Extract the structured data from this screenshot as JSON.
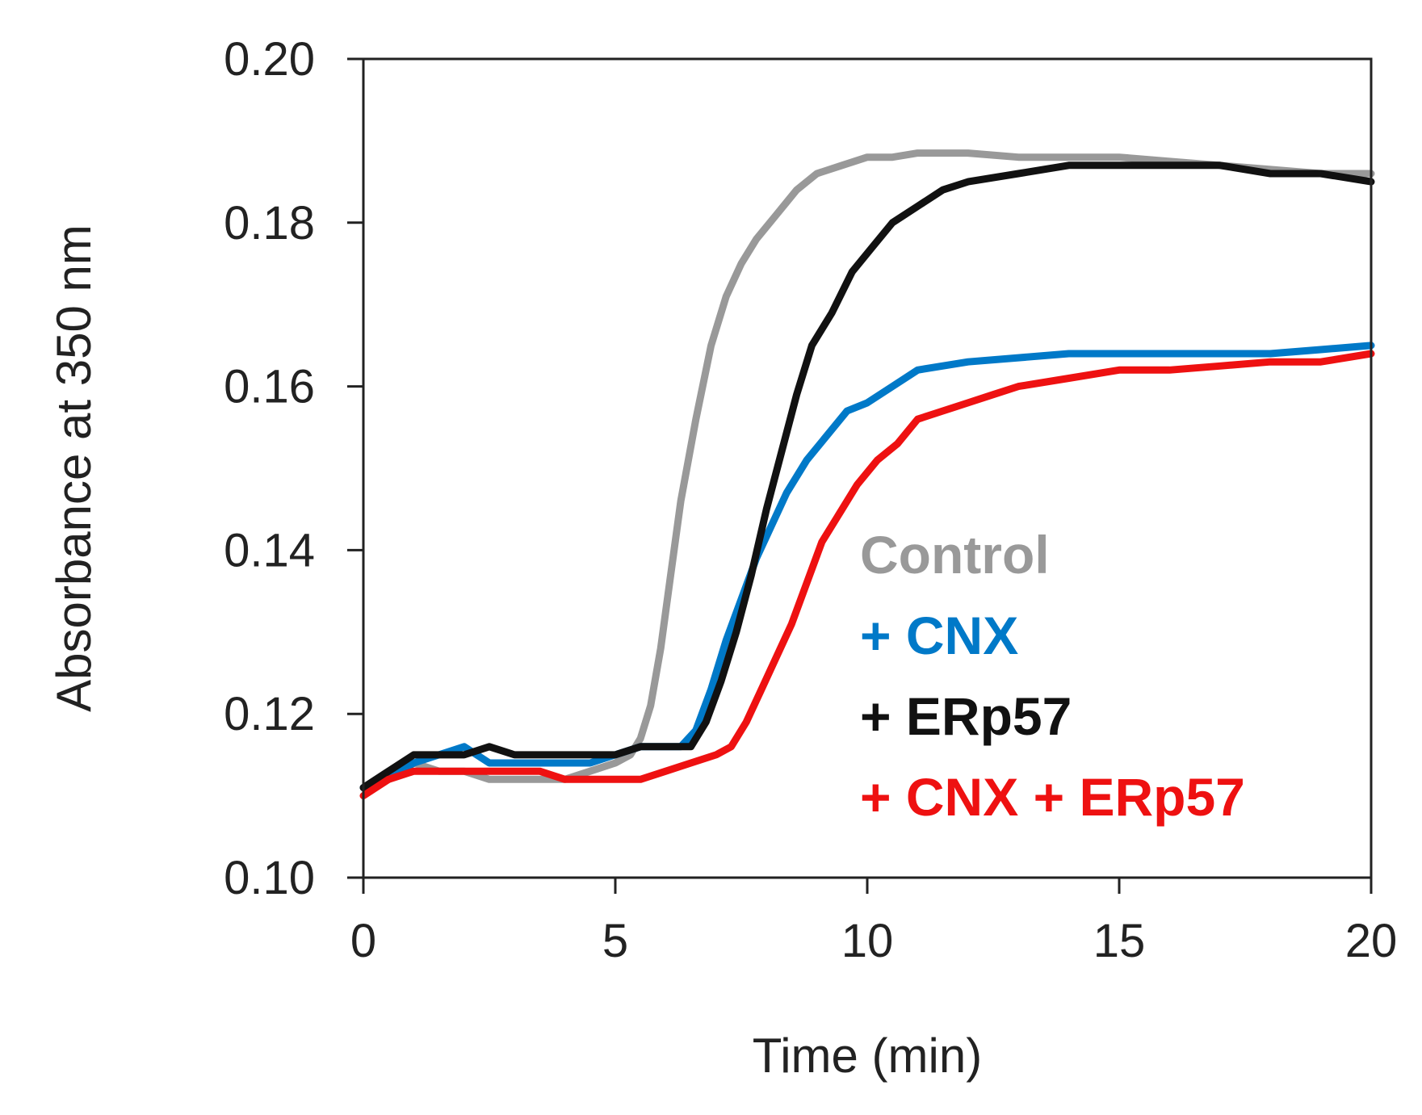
{
  "chart_data": {
    "type": "line",
    "title": "",
    "xlabel": "Time (min)",
    "ylabel": "Absorbance at 350 nm",
    "xlim": [
      0,
      20
    ],
    "ylim": [
      0.1,
      0.2
    ],
    "xticks": [
      0,
      5,
      10,
      15,
      20
    ],
    "xtick_labels": [
      "0",
      "5",
      "10",
      "15",
      "20"
    ],
    "yticks": [
      0.1,
      0.12,
      0.14,
      0.16,
      0.18,
      0.2
    ],
    "ytick_labels": [
      "0.10",
      "0.12",
      "0.14",
      "0.16",
      "0.18",
      "0.20"
    ],
    "grid": false,
    "legend_position": "bottom-right inside plot",
    "series": [
      {
        "name": "Control",
        "color": "#999999",
        "points": [
          [
            0,
            0.111
          ],
          [
            0.5,
            0.113
          ],
          [
            1,
            0.114
          ],
          [
            1.5,
            0.113
          ],
          [
            2,
            0.113
          ],
          [
            2.5,
            0.112
          ],
          [
            3,
            0.112
          ],
          [
            3.5,
            0.112
          ],
          [
            4,
            0.112
          ],
          [
            4.5,
            0.113
          ],
          [
            5,
            0.114
          ],
          [
            5.3,
            0.115
          ],
          [
            5.5,
            0.117
          ],
          [
            5.7,
            0.121
          ],
          [
            5.9,
            0.128
          ],
          [
            6.1,
            0.137
          ],
          [
            6.3,
            0.146
          ],
          [
            6.6,
            0.156
          ],
          [
            6.9,
            0.165
          ],
          [
            7.2,
            0.171
          ],
          [
            7.5,
            0.175
          ],
          [
            7.8,
            0.178
          ],
          [
            8.2,
            0.181
          ],
          [
            8.6,
            0.184
          ],
          [
            9,
            0.186
          ],
          [
            9.5,
            0.187
          ],
          [
            10,
            0.188
          ],
          [
            10.5,
            0.188
          ],
          [
            11,
            0.1885
          ],
          [
            12,
            0.1885
          ],
          [
            13,
            0.188
          ],
          [
            14,
            0.188
          ],
          [
            15,
            0.188
          ],
          [
            16,
            0.1875
          ],
          [
            17,
            0.187
          ],
          [
            18,
            0.1865
          ],
          [
            19,
            0.186
          ],
          [
            20,
            0.186
          ]
        ]
      },
      {
        "name": "+ CNX",
        "color": "#0079c8",
        "points": [
          [
            0,
            0.111
          ],
          [
            0.5,
            0.112
          ],
          [
            1,
            0.114
          ],
          [
            1.5,
            0.115
          ],
          [
            2,
            0.116
          ],
          [
            2.5,
            0.114
          ],
          [
            3,
            0.114
          ],
          [
            3.5,
            0.114
          ],
          [
            4,
            0.114
          ],
          [
            4.5,
            0.114
          ],
          [
            5,
            0.115
          ],
          [
            5.5,
            0.116
          ],
          [
            6,
            0.116
          ],
          [
            6.3,
            0.116
          ],
          [
            6.6,
            0.118
          ],
          [
            6.9,
            0.123
          ],
          [
            7.2,
            0.129
          ],
          [
            7.5,
            0.134
          ],
          [
            7.8,
            0.139
          ],
          [
            8.1,
            0.143
          ],
          [
            8.4,
            0.147
          ],
          [
            8.8,
            0.151
          ],
          [
            9.2,
            0.154
          ],
          [
            9.6,
            0.157
          ],
          [
            10,
            0.158
          ],
          [
            10.5,
            0.16
          ],
          [
            11,
            0.162
          ],
          [
            12,
            0.163
          ],
          [
            13,
            0.1635
          ],
          [
            14,
            0.164
          ],
          [
            15,
            0.164
          ],
          [
            16,
            0.164
          ],
          [
            17,
            0.164
          ],
          [
            18,
            0.164
          ],
          [
            19,
            0.1645
          ],
          [
            20,
            0.165
          ]
        ]
      },
      {
        "name": "+ ERp57",
        "color": "#111111",
        "points": [
          [
            0,
            0.111
          ],
          [
            0.5,
            0.113
          ],
          [
            1,
            0.115
          ],
          [
            1.5,
            0.115
          ],
          [
            2,
            0.115
          ],
          [
            2.5,
            0.116
          ],
          [
            3,
            0.115
          ],
          [
            3.5,
            0.115
          ],
          [
            4,
            0.115
          ],
          [
            4.5,
            0.115
          ],
          [
            5,
            0.115
          ],
          [
            5.5,
            0.116
          ],
          [
            6,
            0.116
          ],
          [
            6.5,
            0.116
          ],
          [
            6.8,
            0.119
          ],
          [
            7.1,
            0.124
          ],
          [
            7.4,
            0.13
          ],
          [
            7.7,
            0.137
          ],
          [
            8,
            0.145
          ],
          [
            8.3,
            0.152
          ],
          [
            8.6,
            0.159
          ],
          [
            8.9,
            0.165
          ],
          [
            9.3,
            0.169
          ],
          [
            9.7,
            0.174
          ],
          [
            10.1,
            0.177
          ],
          [
            10.5,
            0.18
          ],
          [
            11,
            0.182
          ],
          [
            11.5,
            0.184
          ],
          [
            12,
            0.185
          ],
          [
            13,
            0.186
          ],
          [
            14,
            0.187
          ],
          [
            15,
            0.187
          ],
          [
            16,
            0.187
          ],
          [
            17,
            0.187
          ],
          [
            18,
            0.186
          ],
          [
            19,
            0.186
          ],
          [
            20,
            0.185
          ]
        ]
      },
      {
        "name": "+ CNX + ERp57",
        "color": "#ee1111",
        "points": [
          [
            0,
            0.11
          ],
          [
            0.5,
            0.112
          ],
          [
            1,
            0.113
          ],
          [
            1.5,
            0.113
          ],
          [
            2,
            0.113
          ],
          [
            2.5,
            0.113
          ],
          [
            3,
            0.113
          ],
          [
            3.5,
            0.113
          ],
          [
            4,
            0.112
          ],
          [
            4.5,
            0.112
          ],
          [
            5,
            0.112
          ],
          [
            5.5,
            0.112
          ],
          [
            6,
            0.113
          ],
          [
            6.5,
            0.114
          ],
          [
            7,
            0.115
          ],
          [
            7.3,
            0.116
          ],
          [
            7.6,
            0.119
          ],
          [
            7.9,
            0.123
          ],
          [
            8.2,
            0.127
          ],
          [
            8.5,
            0.131
          ],
          [
            8.8,
            0.136
          ],
          [
            9.1,
            0.141
          ],
          [
            9.4,
            0.144
          ],
          [
            9.8,
            0.148
          ],
          [
            10.2,
            0.151
          ],
          [
            10.6,
            0.153
          ],
          [
            11,
            0.156
          ],
          [
            11.5,
            0.157
          ],
          [
            12,
            0.158
          ],
          [
            12.5,
            0.159
          ],
          [
            13,
            0.16
          ],
          [
            14,
            0.161
          ],
          [
            15,
            0.162
          ],
          [
            16,
            0.162
          ],
          [
            17,
            0.1625
          ],
          [
            18,
            0.163
          ],
          [
            19,
            0.163
          ],
          [
            20,
            0.164
          ]
        ]
      }
    ]
  }
}
